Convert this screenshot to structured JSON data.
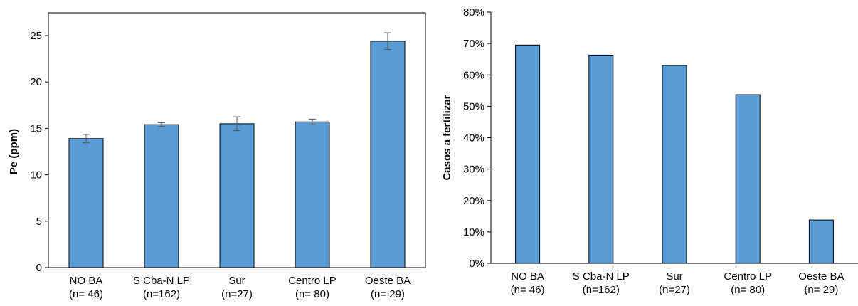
{
  "chart_data": [
    {
      "type": "bar",
      "categories": [
        [
          "NO BA",
          "(n= 46)"
        ],
        [
          "S Cba-N LP",
          "(n=162)"
        ],
        [
          "Sur",
          "(n=27)"
        ],
        [
          "Centro LP",
          "(n= 80)"
        ],
        [
          "Oeste BA",
          "(n= 29)"
        ]
      ],
      "values": [
        13.9,
        15.4,
        15.5,
        15.7,
        24.4
      ],
      "error": [
        0.45,
        0.2,
        0.75,
        0.3,
        0.9
      ],
      "ylabel": "Pe (ppm)",
      "ylim": [
        0,
        25
      ],
      "yticks": [
        "0",
        "5",
        "10",
        "15",
        "20",
        "25"
      ],
      "ytick_values": [
        0,
        5,
        10,
        15,
        20,
        25
      ],
      "bar_color": "#5B9BD5",
      "frame": true,
      "grid": false
    },
    {
      "type": "bar",
      "categories": [
        [
          "NO BA",
          "(n= 46)"
        ],
        [
          "S Cba-N LP",
          "(n=162)"
        ],
        [
          "Sur",
          "(n=27)"
        ],
        [
          "Centro LP",
          "(n= 80)"
        ],
        [
          "Oeste BA",
          "(n= 29)"
        ]
      ],
      "values": [
        69.5,
        66.3,
        63,
        53.7,
        13.8
      ],
      "ylabel": "Casos  a fertilizar",
      "ylim": [
        0,
        80
      ],
      "yticks": [
        "0%",
        "10%",
        "20%",
        "30%",
        "40%",
        "50%",
        "60%",
        "70%",
        "80%"
      ],
      "ytick_values": [
        0,
        10,
        20,
        30,
        40,
        50,
        60,
        70,
        80
      ],
      "bar_color": "#5B9BD5",
      "frame": false,
      "grid": false
    }
  ]
}
